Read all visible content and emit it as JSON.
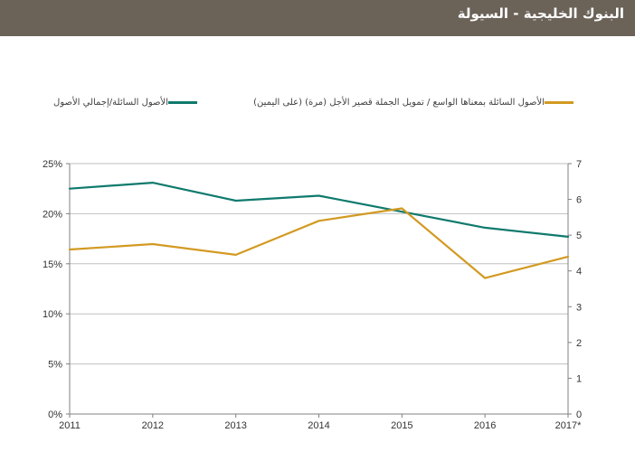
{
  "header": {
    "title": "البنوك الخليجية - السيولة"
  },
  "chart_data": {
    "type": "line",
    "title": "",
    "categories": [
      "2011",
      "2012",
      "2013",
      "2014",
      "2015",
      "2016",
      "2017*"
    ],
    "series": [
      {
        "name": "الأصول السائلة/إجمالي الأصول",
        "axis": "left",
        "color": "#0f7a6d",
        "values": [
          22.5,
          23.1,
          21.3,
          21.8,
          20.2,
          18.6,
          17.7
        ]
      },
      {
        "name": "الأصول السائلة بمعناها الواسع / تمويل الجملة قصير الأجل (مرة) (على اليمين)",
        "axis": "right",
        "color": "#d29a22",
        "values": [
          4.6,
          4.75,
          4.45,
          5.4,
          5.75,
          3.8,
          4.4
        ]
      }
    ],
    "y_left": {
      "range": [
        0,
        25
      ],
      "ticks": [
        "0%",
        "5%",
        "10%",
        "15%",
        "20%",
        "25%"
      ]
    },
    "y_right": {
      "range": [
        0,
        7
      ],
      "ticks": [
        "0",
        "1",
        "2",
        "3",
        "4",
        "5",
        "6",
        "7"
      ]
    },
    "grid": true,
    "legend_position": "top"
  }
}
